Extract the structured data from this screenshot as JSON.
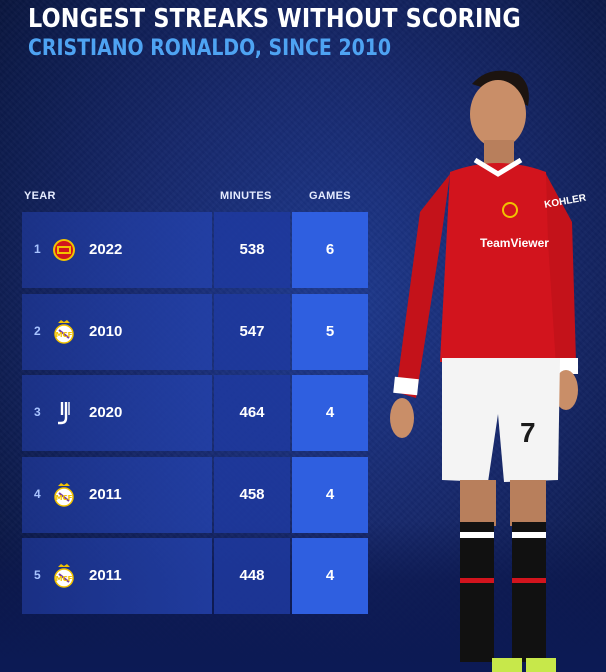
{
  "header": {
    "title": "LONGEST STREAKS WITHOUT SCORING",
    "subtitle": "CRISTIANO RONALDO, SINCE 2010"
  },
  "columns": {
    "year": "YEAR",
    "minutes": "MINUTES",
    "games": "GAMES"
  },
  "rows": [
    {
      "rank": "1",
      "club_icon": "manchester-united-crest-icon",
      "year": "2022",
      "minutes": "538",
      "games": "6"
    },
    {
      "rank": "2",
      "club_icon": "real-madrid-crest-icon",
      "year": "2010",
      "minutes": "547",
      "games": "5"
    },
    {
      "rank": "3",
      "club_icon": "juventus-crest-icon",
      "year": "2020",
      "minutes": "464",
      "games": "4"
    },
    {
      "rank": "4",
      "club_icon": "real-madrid-crest-icon",
      "year": "2011",
      "minutes": "458",
      "games": "4"
    },
    {
      "rank": "5",
      "club_icon": "real-madrid-crest-icon",
      "year": "2011",
      "minutes": "448",
      "games": "4"
    }
  ],
  "player": {
    "shirt_sponsor": "TeamViewer",
    "shirt_sleeve": "KOHLER",
    "shirt_number": "7"
  },
  "colors": {
    "accent": "#4ea3f2",
    "games_cell": "#2f5fe0",
    "shirt_red": "#d2141d"
  }
}
